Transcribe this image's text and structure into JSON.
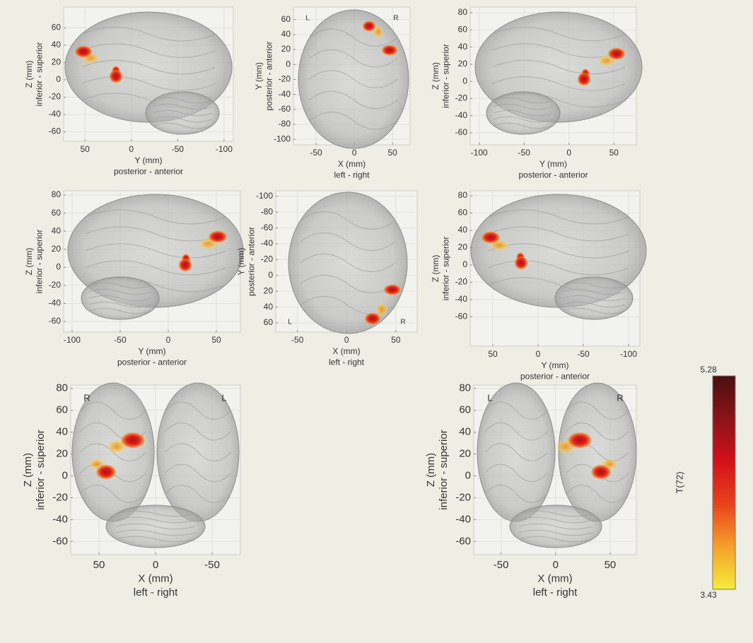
{
  "panels": [
    {
      "xlabel": "Y (mm)",
      "xsublabel": "posterior - anterior",
      "ylabel": "Z (mm)",
      "ysublabel": "inferior - superior",
      "xlim": [
        73,
        -110
      ],
      "ylim": [
        -71,
        84
      ],
      "xticks": [
        50,
        0,
        -50,
        -100
      ],
      "yticks": [
        60,
        40,
        20,
        0,
        -20,
        -40,
        -60
      ]
    },
    {
      "xlabel": "X (mm)",
      "xsublabel": "left - right",
      "ylabel": "Y (mm)",
      "ysublabel": "posterior - anterior",
      "xlim": [
        -79.6,
        73
      ],
      "ylim": [
        -107.4,
        76.7
      ],
      "xticks": [
        -50,
        0,
        50
      ],
      "yticks": [
        60,
        40,
        20,
        0,
        -20,
        -40,
        -60,
        -80,
        -100
      ],
      "corner_labels": [
        "L",
        "R"
      ],
      "corner_labels_at": "top"
    },
    {
      "xlabel": "Y (mm)",
      "xsublabel": "posterior - anterior",
      "ylabel": "Z (mm)",
      "ysublabel": "inferior - superior",
      "xlim": [
        -110,
        75
      ],
      "ylim": [
        -74,
        86.6
      ],
      "xticks": [
        -100,
        -50,
        0,
        50
      ],
      "yticks": [
        80,
        60,
        40,
        20,
        0,
        -20,
        -40,
        -60
      ]
    },
    {
      "xlabel": "Y (mm)",
      "xsublabel": "posterior - anterior",
      "ylabel": "Z (mm)",
      "ysublabel": "inferior - superior",
      "xlim": [
        -108.8,
        75
      ],
      "ylim": [
        -71.7,
        84.7
      ],
      "xticks": [
        -100,
        -50,
        0,
        50
      ],
      "yticks": [
        80,
        60,
        40,
        20,
        0,
        -20,
        -40,
        -60
      ]
    },
    {
      "xlabel": "X (mm)",
      "xsublabel": "left - right",
      "ylabel": "Y (mm)",
      "ysublabel": "posterior - anterior",
      "xlim": [
        -72,
        71.6
      ],
      "ylim": [
        71.6,
        -107
      ],
      "xticks": [
        -50,
        0,
        50
      ],
      "yticks": [
        -100,
        -80,
        -60,
        -40,
        -20,
        0,
        20,
        40,
        60
      ],
      "corner_labels": [
        "L",
        "R"
      ],
      "corner_labels_at": "bottom"
    },
    {
      "xlabel": "Y (mm)",
      "xsublabel": "posterior - anterior",
      "ylabel": "Z (mm)",
      "ysublabel": "inferior - superior",
      "xlim": [
        75,
        -112.5
      ],
      "ylim": [
        -94,
        85.7
      ],
      "xticks": [
        50,
        0,
        -50,
        -100
      ],
      "yticks": [
        80,
        60,
        40,
        20,
        0,
        -20,
        -40,
        -60
      ]
    },
    {
      "xlabel": "X (mm)",
      "xsublabel": "left - right",
      "ylabel": "Z (mm)",
      "ysublabel": "inferior - superior",
      "xlim": [
        75,
        -75
      ],
      "ylim": [
        -72,
        83
      ],
      "xticks": [
        50,
        0,
        -50
      ],
      "yticks": [
        80,
        60,
        40,
        20,
        0,
        -20,
        -40,
        -60
      ],
      "corner_labels": [
        "R",
        "L"
      ],
      "corner_labels_at": "top"
    },
    {
      "xlabel": "X (mm)",
      "xsublabel": "left - right",
      "ylabel": "Z (mm)",
      "ysublabel": "inferior - superior",
      "xlim": [
        -75,
        74
      ],
      "ylim": [
        -72,
        83
      ],
      "xticks": [
        -50,
        0,
        50
      ],
      "yticks": [
        80,
        60,
        40,
        20,
        0,
        -20,
        -40,
        -60
      ],
      "corner_labels": [
        "L",
        "R"
      ],
      "corner_labels_at": "top"
    }
  ],
  "colorbar": {
    "label": "T(72)",
    "max": "5.28",
    "min": "3.43",
    "colors": [
      "#f7ec3a",
      "#f6a02a",
      "#e8421c",
      "#d3101a",
      "#8a1418",
      "#4a0e10"
    ]
  }
}
